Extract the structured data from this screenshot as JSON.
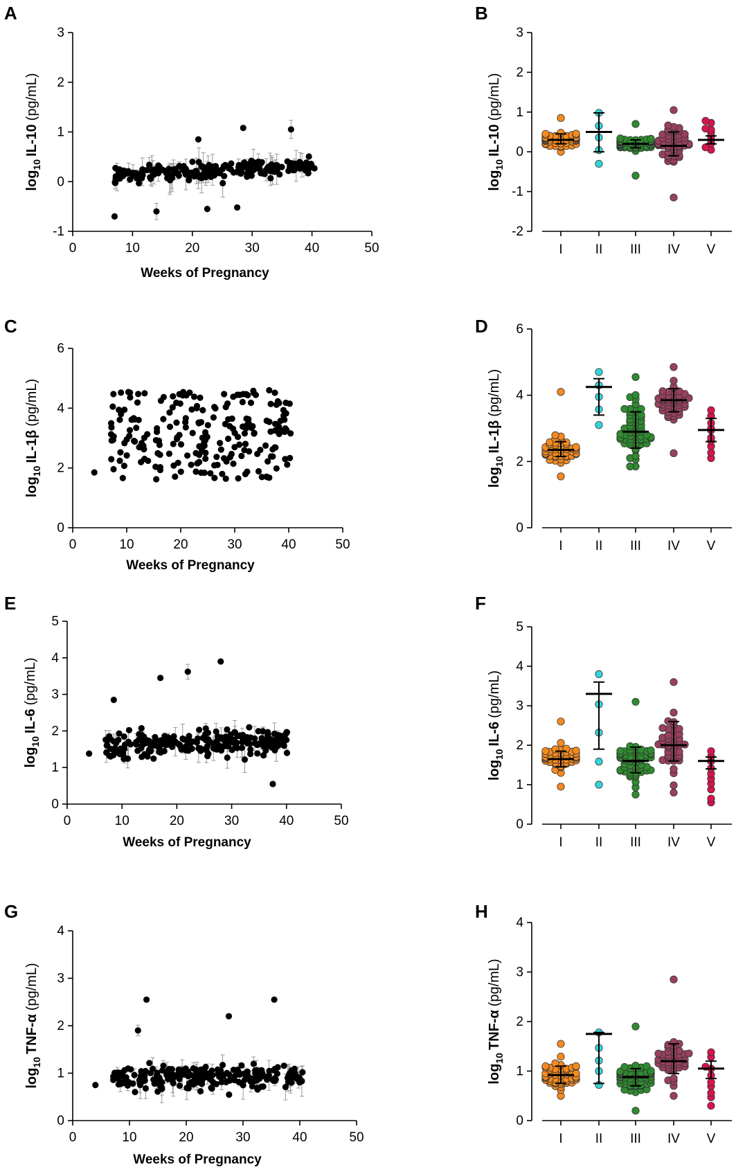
{
  "figure": {
    "panels": [
      "A",
      "B",
      "C",
      "D",
      "E",
      "F",
      "G",
      "H"
    ]
  },
  "chart_data": [
    {
      "panel": "A",
      "type": "scatter",
      "title": "",
      "xlabel": "Weeks of Pregnancy",
      "ylabel": {
        "prefix": "log",
        "sub": "10",
        "analyte": "IL-10",
        "unit": "(pg/mL)"
      },
      "xlim": [
        0,
        50
      ],
      "ylim": [
        -1,
        3
      ],
      "xticks": [
        "0",
        "10",
        "20",
        "30",
        "40",
        "50"
      ],
      "yticks": [
        "-1",
        "0",
        "1",
        "2",
        "3"
      ],
      "grid": false,
      "error_bars": true,
      "n_points": 230,
      "trend": {
        "mean_intercept": 0.08,
        "mean_slope": 0.006,
        "spread": 0.22,
        "outliers": [
          [
            7,
            -0.7
          ],
          [
            28.5,
            1.08
          ],
          [
            36.5,
            1.05
          ],
          [
            27.5,
            -0.52
          ],
          [
            22.5,
            -0.55
          ],
          [
            21,
            0.85
          ],
          [
            14,
            -0.6
          ]
        ]
      }
    },
    {
      "panel": "B",
      "type": "strip",
      "xlabel": "",
      "ylabel": {
        "prefix": "log",
        "sub": "10",
        "analyte": "IL-10",
        "unit": "(pg/mL)"
      },
      "ylim": [
        -2,
        3
      ],
      "yticks": [
        "-2",
        "-1",
        "0",
        "1",
        "2",
        "3"
      ],
      "categories": [
        "I",
        "II",
        "III",
        "IV",
        "V"
      ],
      "groups": [
        {
          "name": "I",
          "color": "#F58A1F",
          "n": 48,
          "median": 0.3,
          "q1": 0.2,
          "q3": 0.45,
          "min": 0.0,
          "max": 0.85
        },
        {
          "name": "II",
          "color": "#33D4D9",
          "n": 5,
          "median": 0.5,
          "q1": 0.0,
          "q3": 0.98,
          "min": -0.3,
          "max": 0.98
        },
        {
          "name": "III",
          "color": "#2E8B2E",
          "n": 50,
          "median": 0.2,
          "q1": 0.1,
          "q3": 0.3,
          "min": -0.6,
          "max": 0.7
        },
        {
          "name": "IV",
          "color": "#99405F",
          "n": 55,
          "median": 0.15,
          "q1": -0.1,
          "q3": 0.5,
          "min": -1.15,
          "max": 1.05
        },
        {
          "name": "V",
          "color": "#D6144D",
          "n": 10,
          "median": 0.3,
          "q1": 0.2,
          "q3": 0.4,
          "min": 0.05,
          "max": 0.78
        }
      ]
    },
    {
      "panel": "C",
      "type": "scatter",
      "xlabel": "Weeks of Pregnancy",
      "ylabel": {
        "prefix": "log",
        "sub": "10",
        "analyte": "IL-1β",
        "unit": "(pg/mL)"
      },
      "xlim": [
        0,
        50
      ],
      "ylim": [
        0,
        6
      ],
      "xticks": [
        "0",
        "10",
        "20",
        "30",
        "40",
        "50"
      ],
      "yticks": [
        "0",
        "2",
        "4",
        "6"
      ],
      "grid": false,
      "error_bars": false,
      "n_points": 220,
      "trend": {
        "uniform_low": 1.6,
        "uniform_high": 4.6,
        "outliers": [
          [
            4,
            1.85
          ]
        ]
      }
    },
    {
      "panel": "D",
      "type": "strip",
      "ylabel": {
        "prefix": "log",
        "sub": "10",
        "analyte": "IL-1β",
        "unit": "(pg/mL)"
      },
      "ylim": [
        0,
        6
      ],
      "yticks": [
        "0",
        "2",
        "4",
        "6"
      ],
      "categories": [
        "I",
        "II",
        "III",
        "IV",
        "V"
      ],
      "groups": [
        {
          "name": "I",
          "color": "#F58A1F",
          "n": 50,
          "median": 2.35,
          "q1": 2.15,
          "q3": 2.6,
          "min": 1.55,
          "max": 4.1
        },
        {
          "name": "II",
          "color": "#33D4D9",
          "n": 5,
          "median": 4.25,
          "q1": 3.4,
          "q3": 4.5,
          "min": 3.1,
          "max": 4.7
        },
        {
          "name": "III",
          "color": "#2E8B2E",
          "n": 60,
          "median": 2.9,
          "q1": 2.4,
          "q3": 3.5,
          "min": 1.85,
          "max": 4.55
        },
        {
          "name": "IV",
          "color": "#99405F",
          "n": 45,
          "median": 3.85,
          "q1": 3.5,
          "q3": 4.2,
          "min": 2.25,
          "max": 4.85
        },
        {
          "name": "V",
          "color": "#D6144D",
          "n": 10,
          "median": 2.95,
          "q1": 2.6,
          "q3": 3.3,
          "min": 2.1,
          "max": 3.55
        }
      ]
    },
    {
      "panel": "E",
      "type": "scatter",
      "xlabel": "Weeks of Pregnancy",
      "ylabel": {
        "prefix": "log",
        "sub": "10",
        "analyte": "IL-6",
        "unit": "(pg/mL)"
      },
      "xlim": [
        0,
        50
      ],
      "ylim": [
        0,
        5
      ],
      "xticks": [
        "0",
        "10",
        "20",
        "30",
        "40",
        "50"
      ],
      "yticks": [
        "0",
        "1",
        "2",
        "3",
        "4",
        "5"
      ],
      "grid": false,
      "error_bars": true,
      "n_points": 230,
      "trend": {
        "mean_intercept": 1.55,
        "mean_slope": 0.005,
        "spread": 0.45,
        "outliers": [
          [
            4,
            1.38
          ],
          [
            28,
            3.9
          ],
          [
            22,
            3.62
          ],
          [
            17,
            3.45
          ],
          [
            37.5,
            0.55
          ],
          [
            8.5,
            2.85
          ]
        ]
      }
    },
    {
      "panel": "F",
      "type": "strip",
      "ylabel": {
        "prefix": "log",
        "sub": "10",
        "analyte": "IL-6",
        "unit": "(pg/mL)"
      },
      "ylim": [
        0,
        5
      ],
      "yticks": [
        "0",
        "1",
        "2",
        "3",
        "4",
        "5"
      ],
      "categories": [
        "I",
        "II",
        "III",
        "IV",
        "V"
      ],
      "groups": [
        {
          "name": "I",
          "color": "#F58A1F",
          "n": 48,
          "median": 1.65,
          "q1": 1.45,
          "q3": 1.85,
          "min": 0.95,
          "max": 2.6
        },
        {
          "name": "II",
          "color": "#33D4D9",
          "n": 5,
          "median": 3.3,
          "q1": 1.9,
          "q3": 3.6,
          "min": 1.0,
          "max": 3.8
        },
        {
          "name": "III",
          "color": "#2E8B2E",
          "n": 60,
          "median": 1.6,
          "q1": 1.3,
          "q3": 1.95,
          "min": 0.75,
          "max": 3.1
        },
        {
          "name": "IV",
          "color": "#99405F",
          "n": 45,
          "median": 2.0,
          "q1": 1.6,
          "q3": 2.6,
          "min": 0.8,
          "max": 3.6
        },
        {
          "name": "V",
          "color": "#D6144D",
          "n": 10,
          "median": 1.6,
          "q1": 1.4,
          "q3": 1.7,
          "min": 0.55,
          "max": 1.85
        }
      ]
    },
    {
      "panel": "G",
      "type": "scatter",
      "xlabel": "Weeks of Pregnancy",
      "ylabel": {
        "prefix": "log",
        "sub": "10",
        "analyte": "TNF-α",
        "unit": "(pg/mL)"
      },
      "xlim": [
        0,
        50
      ],
      "ylim": [
        0,
        4
      ],
      "xticks": [
        "0",
        "10",
        "20",
        "30",
        "40",
        "50"
      ],
      "yticks": [
        "0",
        "1",
        "2",
        "3",
        "4"
      ],
      "grid": false,
      "error_bars": true,
      "n_points": 230,
      "trend": {
        "mean_intercept": 0.92,
        "mean_slope": 0.0,
        "spread": 0.3,
        "outliers": [
          [
            13,
            2.55
          ],
          [
            35.5,
            2.55
          ],
          [
            11.5,
            1.9
          ],
          [
            27.5,
            2.2
          ],
          [
            4,
            0.75
          ]
        ]
      }
    },
    {
      "panel": "H",
      "type": "strip",
      "ylabel": {
        "prefix": "log",
        "sub": "10",
        "analyte": "TNF-α",
        "unit": "(pg/mL)"
      },
      "ylim": [
        0,
        4
      ],
      "yticks": [
        "0",
        "1",
        "2",
        "3",
        "4"
      ],
      "categories": [
        "I",
        "II",
        "III",
        "IV",
        "V"
      ],
      "groups": [
        {
          "name": "I",
          "color": "#F58A1F",
          "n": 50,
          "median": 0.92,
          "q1": 0.75,
          "q3": 1.1,
          "min": 0.5,
          "max": 1.55
        },
        {
          "name": "II",
          "color": "#33D4D9",
          "n": 5,
          "median": 1.75,
          "q1": 0.75,
          "q3": 1.78,
          "min": 0.72,
          "max": 1.78
        },
        {
          "name": "III",
          "color": "#2E8B2E",
          "n": 60,
          "median": 0.88,
          "q1": 0.7,
          "q3": 1.05,
          "min": 0.2,
          "max": 1.9
        },
        {
          "name": "IV",
          "color": "#99405F",
          "n": 45,
          "median": 1.2,
          "q1": 0.95,
          "q3": 1.55,
          "min": 0.5,
          "max": 2.85
        },
        {
          "name": "V",
          "color": "#D6144D",
          "n": 10,
          "median": 1.05,
          "q1": 0.85,
          "q3": 1.2,
          "min": 0.3,
          "max": 1.38
        }
      ]
    }
  ]
}
